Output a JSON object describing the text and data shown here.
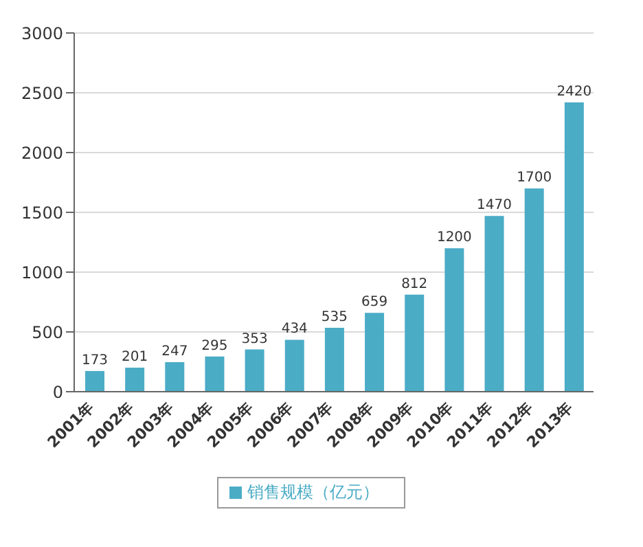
{
  "chart_data": {
    "type": "bar",
    "categories": [
      "2001年",
      "2002年",
      "2003年",
      "2004年",
      "2005年",
      "2006年",
      "2007年",
      "2008年",
      "2009年",
      "2010年",
      "2011年",
      "2012年",
      "2013年"
    ],
    "series": [
      {
        "name": "销售规模（亿元）",
        "color": "#4bacc6",
        "values": [
          173,
          201,
          247,
          295,
          353,
          434,
          535,
          659,
          812,
          1200,
          1470,
          1700,
          2420
        ]
      }
    ],
    "ylim": [
      0,
      3000
    ],
    "yticks": [
      0,
      500,
      1000,
      1500,
      2000,
      2500,
      3000
    ],
    "grid": "y",
    "legend": "bottom",
    "data_labels": true
  }
}
